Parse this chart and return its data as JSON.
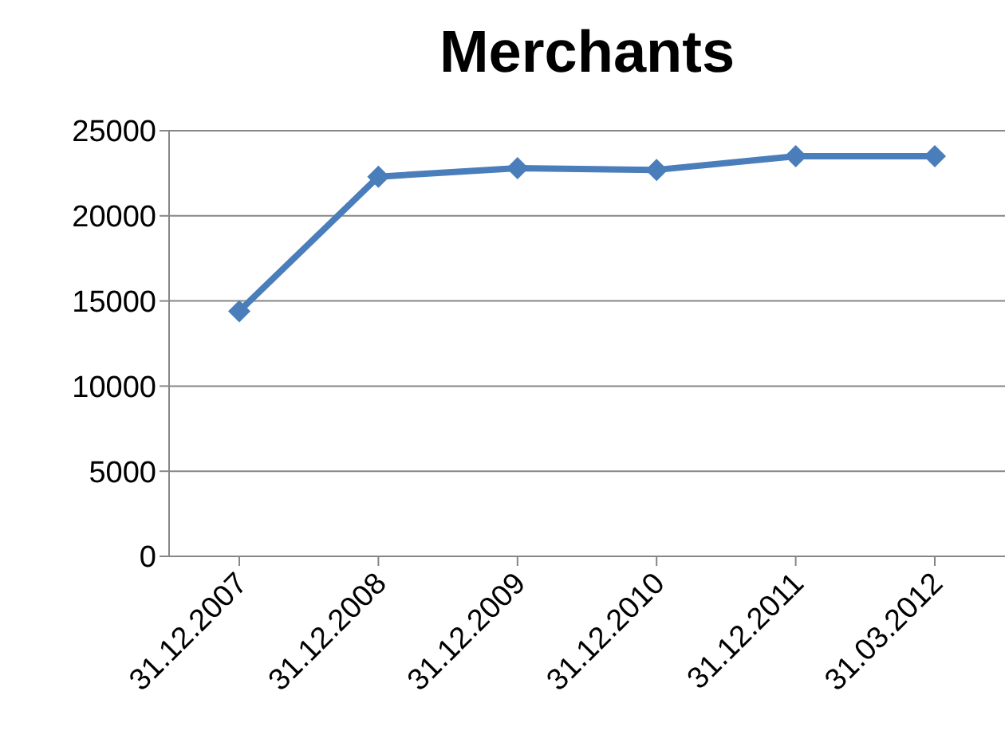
{
  "chart_data": {
    "type": "line",
    "title": "Merchants",
    "categories": [
      "31.12.2007",
      "31.12.2008",
      "31.12.2009",
      "31.12.2010",
      "31.12.2011",
      "31.03.2012"
    ],
    "series": [
      {
        "color": "#4a7ebb",
        "values": [
          14400,
          22300,
          22800,
          22700,
          23500,
          23500
        ]
      }
    ],
    "ylim": [
      0,
      25000
    ],
    "yticks": [
      0,
      5000,
      10000,
      15000,
      20000,
      25000
    ],
    "grid": "y",
    "legend": false,
    "marker": "diamond",
    "line_style": "solid"
  }
}
